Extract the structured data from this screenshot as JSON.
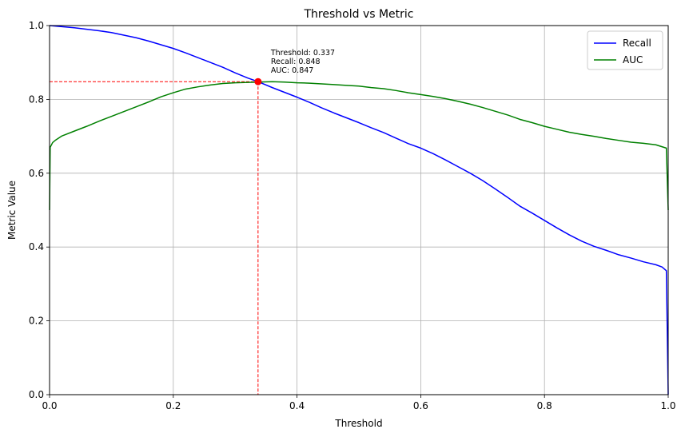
{
  "chart_data": {
    "type": "line",
    "title": "Threshold vs Metric",
    "xlabel": "Threshold",
    "ylabel": "Metric Value",
    "xlim": [
      0,
      1
    ],
    "ylim": [
      0,
      1
    ],
    "grid": true,
    "legend_position": "top-right",
    "xticks": [
      0,
      0.2,
      0.4,
      0.6,
      0.8,
      1
    ],
    "xtick_labels": [
      "0.0",
      "0.2",
      "0.4",
      "0.6",
      "0.8",
      "1.0"
    ],
    "yticks": [
      0,
      0.2,
      0.4,
      0.6,
      0.8,
      1
    ],
    "ytick_labels": [
      "0.0",
      "0.2",
      "0.4",
      "0.6",
      "0.8",
      "1.0"
    ],
    "series": [
      {
        "name": "Recall",
        "color": "#0000ff",
        "points": [
          [
            0.0,
            1.0
          ],
          [
            0.02,
            0.997
          ],
          [
            0.04,
            0.994
          ],
          [
            0.06,
            0.99
          ],
          [
            0.08,
            0.986
          ],
          [
            0.1,
            0.981
          ],
          [
            0.12,
            0.974
          ],
          [
            0.14,
            0.967
          ],
          [
            0.16,
            0.958
          ],
          [
            0.18,
            0.948
          ],
          [
            0.2,
            0.938
          ],
          [
            0.22,
            0.926
          ],
          [
            0.24,
            0.913
          ],
          [
            0.26,
            0.9
          ],
          [
            0.28,
            0.887
          ],
          [
            0.3,
            0.872
          ],
          [
            0.32,
            0.858
          ],
          [
            0.337,
            0.848
          ],
          [
            0.36,
            0.832
          ],
          [
            0.38,
            0.819
          ],
          [
            0.4,
            0.806
          ],
          [
            0.42,
            0.792
          ],
          [
            0.44,
            0.777
          ],
          [
            0.46,
            0.763
          ],
          [
            0.48,
            0.75
          ],
          [
            0.5,
            0.737
          ],
          [
            0.52,
            0.723
          ],
          [
            0.54,
            0.71
          ],
          [
            0.56,
            0.695
          ],
          [
            0.58,
            0.68
          ],
          [
            0.6,
            0.668
          ],
          [
            0.62,
            0.653
          ],
          [
            0.64,
            0.636
          ],
          [
            0.66,
            0.618
          ],
          [
            0.68,
            0.6
          ],
          [
            0.7,
            0.58
          ],
          [
            0.72,
            0.558
          ],
          [
            0.74,
            0.535
          ],
          [
            0.76,
            0.511
          ],
          [
            0.78,
            0.492
          ],
          [
            0.8,
            0.472
          ],
          [
            0.82,
            0.452
          ],
          [
            0.84,
            0.433
          ],
          [
            0.86,
            0.416
          ],
          [
            0.88,
            0.402
          ],
          [
            0.9,
            0.391
          ],
          [
            0.92,
            0.379
          ],
          [
            0.94,
            0.37
          ],
          [
            0.96,
            0.36
          ],
          [
            0.98,
            0.352
          ],
          [
            0.99,
            0.346
          ],
          [
            0.997,
            0.336
          ],
          [
            1.0,
            0.0
          ]
        ]
      },
      {
        "name": "AUC",
        "color": "#008000",
        "points": [
          [
            0.0,
            0.5
          ],
          [
            0.001,
            0.67
          ],
          [
            0.005,
            0.683
          ],
          [
            0.01,
            0.69
          ],
          [
            0.02,
            0.701
          ],
          [
            0.04,
            0.714
          ],
          [
            0.06,
            0.727
          ],
          [
            0.08,
            0.741
          ],
          [
            0.1,
            0.754
          ],
          [
            0.12,
            0.767
          ],
          [
            0.14,
            0.78
          ],
          [
            0.16,
            0.793
          ],
          [
            0.18,
            0.807
          ],
          [
            0.2,
            0.818
          ],
          [
            0.22,
            0.828
          ],
          [
            0.24,
            0.834
          ],
          [
            0.26,
            0.839
          ],
          [
            0.28,
            0.843
          ],
          [
            0.3,
            0.845
          ],
          [
            0.337,
            0.847
          ],
          [
            0.36,
            0.848
          ],
          [
            0.38,
            0.847
          ],
          [
            0.4,
            0.845
          ],
          [
            0.42,
            0.844
          ],
          [
            0.44,
            0.842
          ],
          [
            0.46,
            0.84
          ],
          [
            0.48,
            0.838
          ],
          [
            0.5,
            0.836
          ],
          [
            0.52,
            0.832
          ],
          [
            0.54,
            0.829
          ],
          [
            0.56,
            0.824
          ],
          [
            0.58,
            0.818
          ],
          [
            0.6,
            0.813
          ],
          [
            0.62,
            0.808
          ],
          [
            0.64,
            0.802
          ],
          [
            0.66,
            0.795
          ],
          [
            0.68,
            0.787
          ],
          [
            0.7,
            0.778
          ],
          [
            0.72,
            0.768
          ],
          [
            0.74,
            0.758
          ],
          [
            0.76,
            0.746
          ],
          [
            0.78,
            0.737
          ],
          [
            0.8,
            0.727
          ],
          [
            0.82,
            0.719
          ],
          [
            0.84,
            0.711
          ],
          [
            0.86,
            0.705
          ],
          [
            0.88,
            0.7
          ],
          [
            0.9,
            0.694
          ],
          [
            0.92,
            0.689
          ],
          [
            0.94,
            0.684
          ],
          [
            0.96,
            0.681
          ],
          [
            0.98,
            0.677
          ],
          [
            0.997,
            0.668
          ],
          [
            1.0,
            0.5
          ]
        ]
      }
    ],
    "marker": {
      "x": 0.337,
      "y": 0.848,
      "color": "#ff0000",
      "annotation": [
        "Threshold: 0.337",
        "Recall: 0.848",
        "AUC: 0.847"
      ]
    }
  }
}
